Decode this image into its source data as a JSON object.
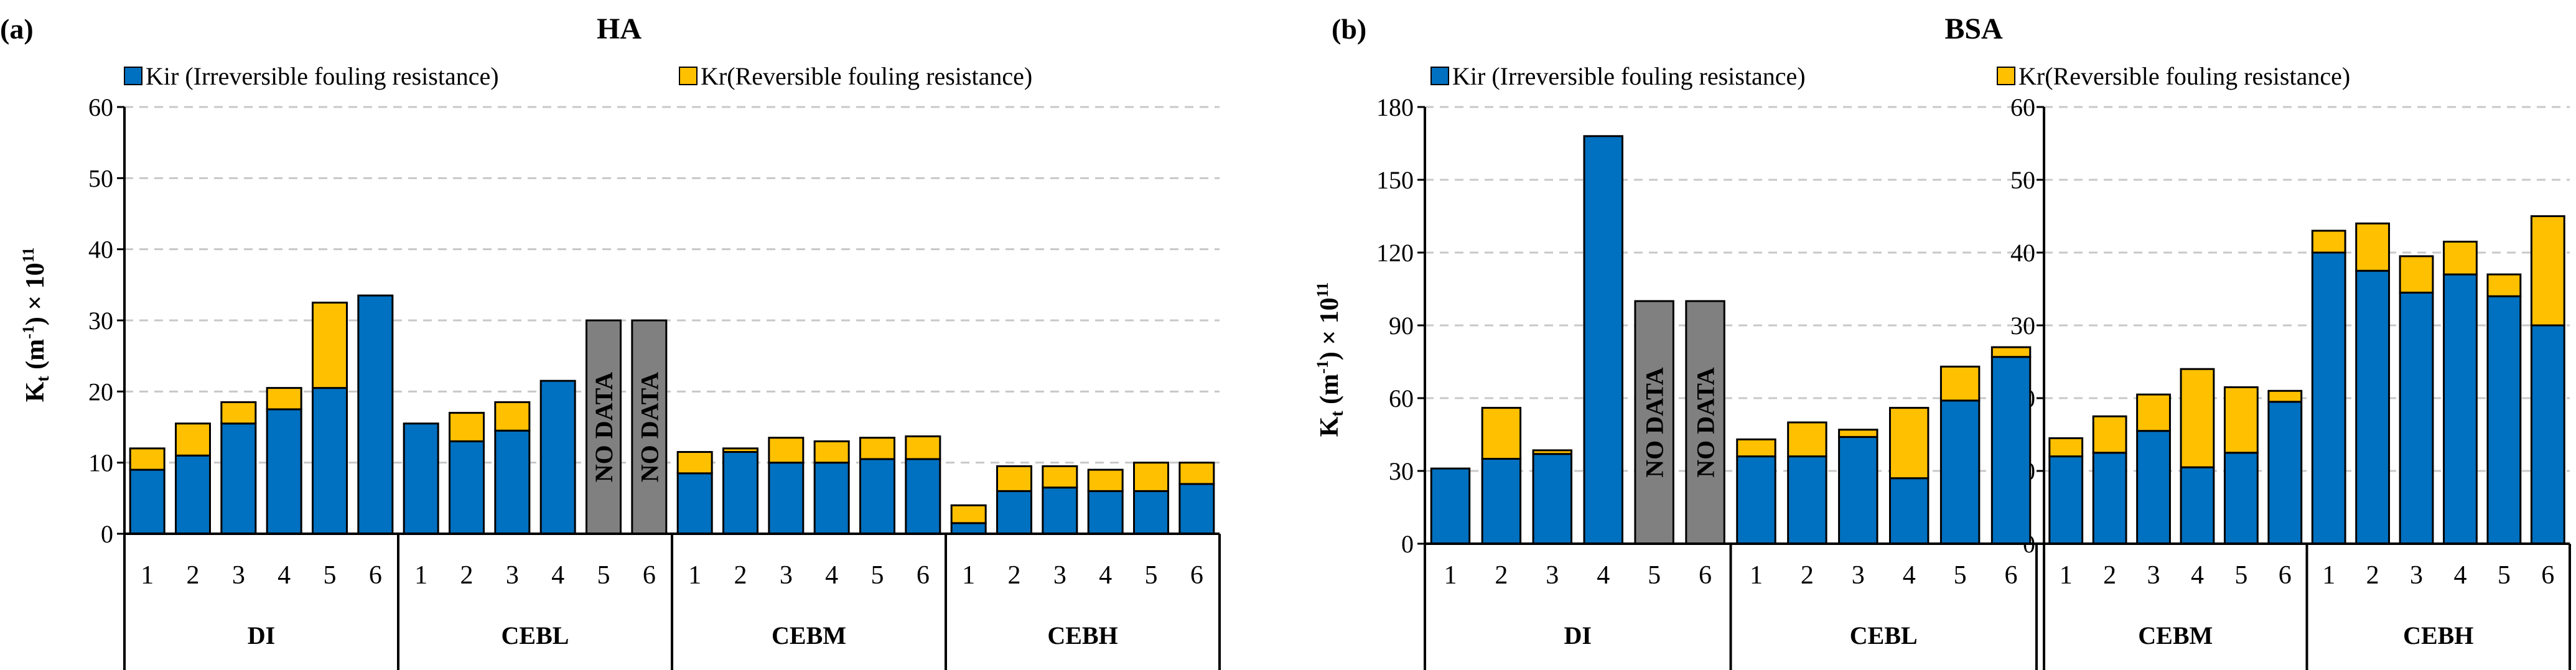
{
  "chart_data": [
    {
      "type": "bar",
      "stacked": true,
      "panel_label": "(a)",
      "title": "HA",
      "ylabel": "K_t (m^-1) × 10^11",
      "ylim": [
        0,
        60
      ],
      "yticks": [
        0,
        10,
        20,
        30,
        40,
        50,
        60
      ],
      "grid": true,
      "legend_position": "top",
      "legend": [
        {
          "label": "Kir (Irreversible fouling resistance)",
          "color": "#0070C0"
        },
        {
          "label": "Kr(Reversible fouling resistance)",
          "color": "#FFC000"
        }
      ],
      "groups": [
        "DI",
        "CEBL",
        "CEBM",
        "CEBH"
      ],
      "categories": [
        "1",
        "2",
        "3",
        "4",
        "5",
        "6"
      ],
      "no_data_label": "NO DATA",
      "series": [
        {
          "name": "Kir (Irreversible fouling resistance)",
          "color": "#0070C0",
          "values": [
            [
              9,
              11,
              15.5,
              17.5,
              20.5,
              33.5
            ],
            [
              15.5,
              13,
              14.5,
              21.5,
              null,
              null
            ],
            [
              8.5,
              11.5,
              10,
              10,
              10.5,
              10.5
            ],
            [
              1.5,
              6,
              6.5,
              6,
              6,
              7
            ]
          ]
        },
        {
          "name": "Kr(Reversible fouling resistance)",
          "color": "#FFC000",
          "values": [
            [
              3,
              4.5,
              3,
              3,
              12,
              0
            ],
            [
              0,
              4,
              4,
              0,
              null,
              null
            ],
            [
              3,
              0.5,
              3.5,
              3,
              3,
              3.2
            ],
            [
              2.5,
              3.5,
              3,
              3,
              4,
              3
            ]
          ]
        }
      ],
      "no_data": [
        [
          false,
          false,
          false,
          false,
          false,
          false
        ],
        [
          false,
          false,
          false,
          false,
          true,
          true
        ],
        [
          false,
          false,
          false,
          false,
          false,
          false
        ],
        [
          false,
          false,
          false,
          false,
          false,
          false
        ]
      ]
    },
    {
      "type": "bar",
      "stacked": true,
      "panel_label": "(b)",
      "title": "BSA",
      "ylabel": "K_t (m^-1) × 10^11",
      "legend_position": "top",
      "legend": [
        {
          "label": "Kir (Irreversible fouling resistance)",
          "color": "#0070C0"
        },
        {
          "label": "Kr(Reversible fouling resistance)",
          "color": "#FFC000"
        }
      ],
      "no_data_label": "NO DATA",
      "subplots": [
        {
          "axis": "left",
          "ylim": [
            0,
            180
          ],
          "yticks": [
            0,
            30,
            60,
            90,
            120,
            150,
            180
          ],
          "groups": [
            "DI",
            "CEBL"
          ],
          "categories": [
            "1",
            "2",
            "3",
            "4",
            "5",
            "6"
          ],
          "series": [
            {
              "name": "Kir (Irreversible fouling resistance)",
              "values": [
                [
                  31,
                  35,
                  37,
                  168,
                  null,
                  null
                ],
                [
                  36,
                  36,
                  44,
                  27,
                  59,
                  77
                ]
              ]
            },
            {
              "name": "Kr(Reversible fouling resistance)",
              "values": [
                [
                  0,
                  21,
                  1.5,
                  0,
                  null,
                  null
                ],
                [
                  7,
                  14,
                  3,
                  29,
                  14,
                  4
                ]
              ]
            }
          ],
          "no_data": [
            [
              false,
              false,
              false,
              false,
              true,
              true
            ],
            [
              false,
              false,
              false,
              false,
              false,
              false
            ]
          ]
        },
        {
          "axis": "right",
          "ylim": [
            0,
            60
          ],
          "yticks": [
            0,
            10,
            20,
            30,
            40,
            50,
            60
          ],
          "groups": [
            "CEBM",
            "CEBH"
          ],
          "categories": [
            "1",
            "2",
            "3",
            "4",
            "5",
            "6"
          ],
          "series": [
            {
              "name": "Kir (Irreversible fouling resistance)",
              "values": [
                [
                  12,
                  12.5,
                  15.5,
                  10.5,
                  12.5,
                  19.5
                ],
                [
                  40,
                  37.5,
                  34.5,
                  37,
                  34,
                  30
                ]
              ]
            },
            {
              "name": "Kr(Reversible fouling resistance)",
              "values": [
                [
                  2.5,
                  5,
                  5,
                  13.5,
                  9,
                  1.5
                ],
                [
                  3,
                  6.5,
                  5,
                  4.5,
                  3,
                  15
                ]
              ]
            }
          ],
          "no_data": [
            [
              false,
              false,
              false,
              false,
              false,
              false
            ],
            [
              false,
              false,
              false,
              false,
              false,
              false
            ]
          ]
        }
      ]
    }
  ]
}
